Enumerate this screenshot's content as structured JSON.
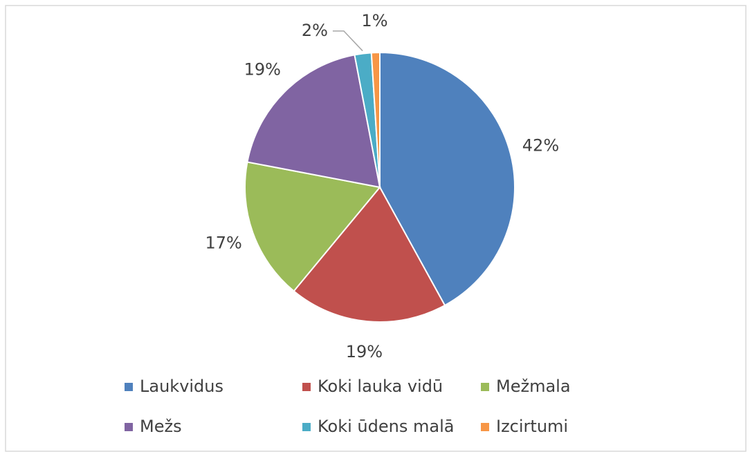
{
  "chart_data": {
    "type": "pie",
    "categories": [
      "Laukvidus",
      "Koki lauka vidū",
      "Mežmala",
      "Mežs",
      "Koki ūdens malā",
      "Izcirtumi"
    ],
    "values": [
      42,
      19,
      17,
      19,
      2,
      1
    ],
    "value_labels": [
      "42%",
      "19%",
      "17%",
      "19%",
      "2%",
      "1%"
    ],
    "colors": [
      "#4f81bd",
      "#c0504d",
      "#9bbb59",
      "#8064a2",
      "#4bacc6",
      "#f79646"
    ],
    "legend": "bottom"
  }
}
